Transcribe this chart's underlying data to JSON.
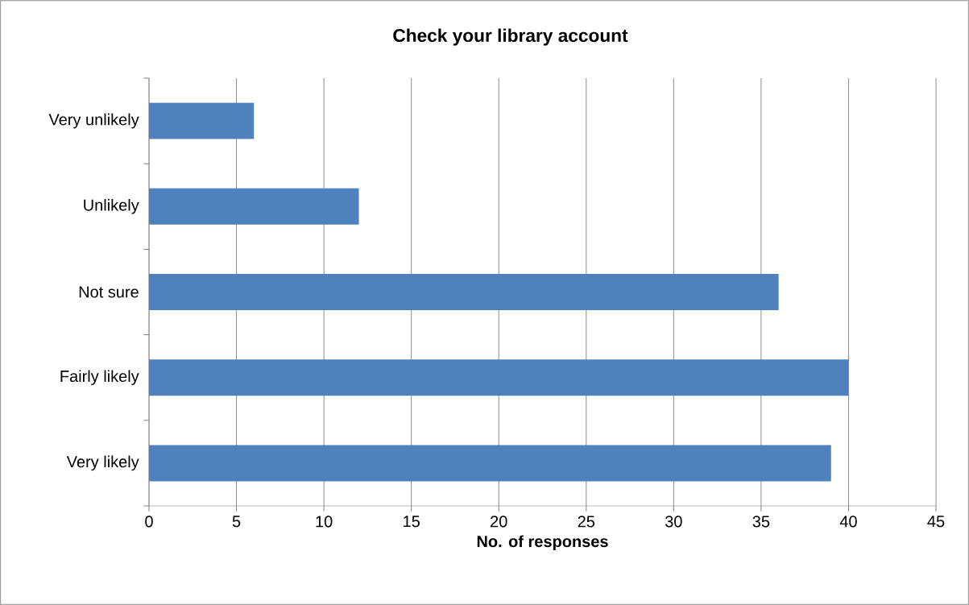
{
  "chart_data": {
    "type": "bar",
    "orientation": "horizontal",
    "title": "Check your library account",
    "xlabel": "No. of responses",
    "categories": [
      "Very unlikely",
      "Unlikely",
      "Not sure",
      "Fairly likely",
      "Very likely"
    ],
    "values": [
      6,
      12,
      36,
      40,
      39
    ],
    "color": "#4f81bd",
    "xlim": [
      0,
      45
    ],
    "xticks": [
      0,
      5,
      10,
      15,
      20,
      25,
      30,
      35,
      40,
      45
    ],
    "grid": "x"
  }
}
